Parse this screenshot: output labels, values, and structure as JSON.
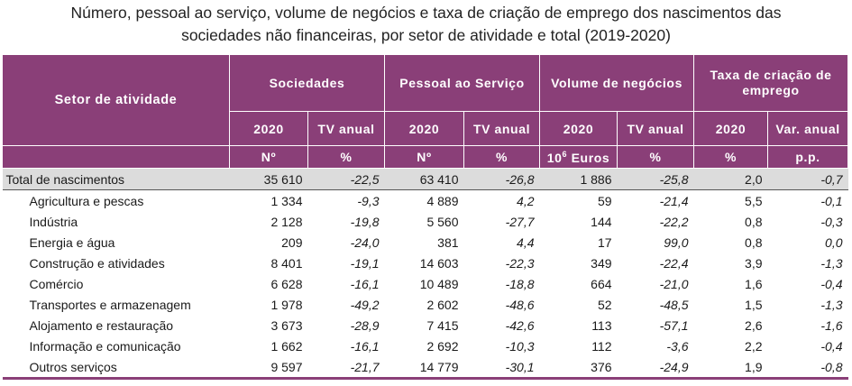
{
  "title": {
    "line1": "Número, pessoal ao serviço, volume de negócios e taxa de criação de emprego dos nascimentos das",
    "line2": "sociedades não financeiras, por setor de atividade e total (2019-2020)"
  },
  "header": {
    "sector": "Setor de atividade",
    "groups": [
      "Sociedades",
      "Pessoal ao Serviço",
      "Volume de negócios",
      "Taxa de criação de emprego"
    ],
    "subheaders": [
      "2020",
      "TV anual",
      "2020",
      "TV anual",
      "2020",
      "TV anual",
      "2020",
      "Var. anual"
    ],
    "units": [
      "Nº",
      "%",
      "Nº",
      "%",
      "Euros",
      "%",
      "%",
      "p.p."
    ],
    "units_volume_prefix": "10",
    "units_volume_exp": "6"
  },
  "rows": [
    {
      "label": "Total de nascimentos",
      "values": [
        "35 610",
        "-22,5",
        "63 410",
        "-26,8",
        "1 886",
        "-25,8",
        "2,0",
        "-0,7"
      ]
    },
    {
      "label": "Agricultura e pescas",
      "values": [
        "1 334",
        "-9,3",
        "4 889",
        "4,2",
        "59",
        "-21,4",
        "5,5",
        "-0,1"
      ]
    },
    {
      "label": "Indústria",
      "values": [
        "2 128",
        "-19,8",
        "5 560",
        "-27,7",
        "144",
        "-22,2",
        "0,8",
        "-0,3"
      ]
    },
    {
      "label": "Energia e água",
      "values": [
        "209",
        "-24,0",
        "381",
        "4,4",
        "17",
        "99,0",
        "0,8",
        "0,0"
      ]
    },
    {
      "label": "Construção e atividades",
      "values": [
        "8 401",
        "-19,1",
        "14 603",
        "-22,3",
        "349",
        "-22,4",
        "3,9",
        "-1,3"
      ]
    },
    {
      "label": "Comércio",
      "values": [
        "6 628",
        "-16,1",
        "10 489",
        "-18,8",
        "664",
        "-21,0",
        "1,6",
        "-0,4"
      ]
    },
    {
      "label": "Transportes e armazenagem",
      "values": [
        "1 978",
        "-49,2",
        "2 602",
        "-48,6",
        "52",
        "-48,5",
        "1,5",
        "-1,3"
      ]
    },
    {
      "label": "Alojamento e restauração",
      "values": [
        "3 673",
        "-28,9",
        "7 415",
        "-42,6",
        "113",
        "-57,1",
        "2,6",
        "-1,6"
      ]
    },
    {
      "label": "Informação e comunicação",
      "values": [
        "1 662",
        "-16,1",
        "2 692",
        "-10,3",
        "112",
        "-3,6",
        "2,2",
        "-0,4"
      ]
    },
    {
      "label": "Outros serviços",
      "values": [
        "9 597",
        "-21,7",
        "14 779",
        "-30,1",
        "376",
        "-24,9",
        "1,9",
        "-0,8"
      ]
    }
  ],
  "colors": {
    "header_bg": "#8a3f78",
    "total_bg": "#dcdcdc"
  }
}
